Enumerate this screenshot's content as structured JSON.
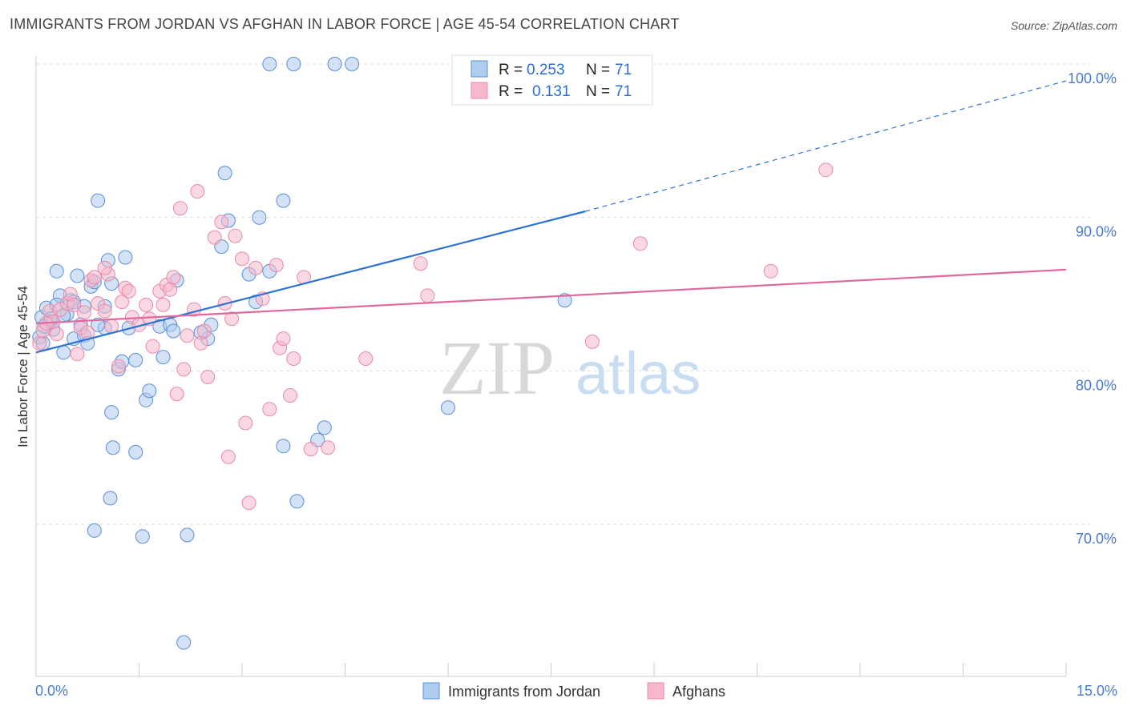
{
  "header": {
    "title": "IMMIGRANTS FROM JORDAN VS AFGHAN IN LABOR FORCE | AGE 45-54 CORRELATION CHART",
    "source": "Source: ZipAtlas.com"
  },
  "watermark": {
    "zip": "ZIP",
    "atlas": "atlas"
  },
  "colors": {
    "jordan_fill": "#aecbf0",
    "jordan_stroke": "#5b8fd6",
    "jordan_line": "#2e73d0",
    "afghan_fill": "#f5b8cc",
    "afghan_stroke": "#e98aa8",
    "afghan_line": "#e0689a",
    "grid": "#dddddd",
    "tick_text": "#4a7bc8"
  },
  "legend": {
    "rows": [
      {
        "r_label": "R =",
        "r_value": "0.253",
        "n_label": "N =",
        "n_value": "71"
      },
      {
        "r_label": "R =",
        "r_value": "0.131",
        "n_label": "N =",
        "n_value": "71"
      }
    ]
  },
  "chart_data": {
    "type": "scatter",
    "title": "IMMIGRANTS FROM JORDAN VS AFGHAN IN LABOR FORCE | AGE 45-54 CORRELATION CHART",
    "xlabel": "",
    "ylabel": "In Labor Force | Age 45-54",
    "xlim": [
      0,
      15
    ],
    "ylim": [
      60,
      101.5
    ],
    "x_tick_labels": [
      "0.0%",
      "15.0%"
    ],
    "y_ticks": [
      70,
      80,
      90,
      100
    ],
    "y_tick_labels": [
      "70.0%",
      "80.0%",
      "90.0%",
      "100.0%"
    ],
    "grid": true,
    "legend_position": "bottom",
    "series": [
      {
        "name": "Immigrants from Jordan",
        "r": 0.253,
        "n": 71,
        "trend": {
          "x0": 0,
          "y0": 81.2,
          "x1": 8.0,
          "y1": 90.4,
          "dash_to_x": 15,
          "dash_to_y": 98.9
        },
        "points": [
          [
            0.05,
            82.2
          ],
          [
            0.08,
            83.5
          ],
          [
            0.1,
            81.8
          ],
          [
            0.15,
            84.1
          ],
          [
            0.2,
            83.2
          ],
          [
            0.25,
            82.7
          ],
          [
            0.3,
            86.5
          ],
          [
            0.35,
            84.9
          ],
          [
            0.4,
            81.2
          ],
          [
            0.45,
            83.7
          ],
          [
            0.5,
            84.6
          ],
          [
            0.55,
            82.1
          ],
          [
            0.6,
            86.2
          ],
          [
            0.65,
            83.0
          ],
          [
            0.7,
            82.3
          ],
          [
            0.75,
            81.8
          ],
          [
            0.8,
            85.5
          ],
          [
            0.85,
            85.8
          ],
          [
            0.9,
            91.1
          ],
          [
            1.0,
            82.8
          ],
          [
            1.05,
            87.2
          ],
          [
            1.1,
            85.7
          ],
          [
            1.2,
            80.1
          ],
          [
            1.25,
            80.6
          ],
          [
            1.3,
            87.4
          ],
          [
            1.35,
            82.8
          ],
          [
            1.45,
            80.7
          ],
          [
            1.6,
            78.1
          ],
          [
            1.65,
            78.7
          ],
          [
            1.8,
            82.9
          ],
          [
            1.85,
            80.9
          ],
          [
            1.95,
            83.0
          ],
          [
            2.0,
            82.6
          ],
          [
            2.05,
            85.9
          ],
          [
            2.15,
            62.3
          ],
          [
            2.2,
            69.3
          ],
          [
            1.55,
            69.2
          ],
          [
            0.85,
            69.6
          ],
          [
            1.08,
            71.7
          ],
          [
            1.12,
            75.0
          ],
          [
            1.45,
            74.7
          ],
          [
            1.1,
            77.3
          ],
          [
            2.5,
            82.1
          ],
          [
            2.55,
            83.0
          ],
          [
            2.7,
            88.1
          ],
          [
            2.75,
            92.9
          ],
          [
            2.8,
            89.8
          ],
          [
            3.1,
            86.3
          ],
          [
            3.2,
            84.5
          ],
          [
            3.25,
            90.0
          ],
          [
            3.4,
            86.5
          ],
          [
            3.6,
            91.1
          ],
          [
            3.6,
            75.1
          ],
          [
            3.8,
            71.5
          ],
          [
            4.1,
            75.5
          ],
          [
            4.2,
            76.3
          ],
          [
            3.4,
            100.0
          ],
          [
            3.75,
            100.0
          ],
          [
            4.35,
            100.0
          ],
          [
            4.6,
            100.0
          ],
          [
            6.0,
            77.6
          ],
          [
            7.7,
            84.6
          ],
          [
            0.12,
            82.9
          ],
          [
            0.22,
            83.4
          ],
          [
            0.3,
            84.3
          ],
          [
            0.4,
            83.6
          ],
          [
            0.55,
            84.5
          ],
          [
            0.7,
            84.2
          ],
          [
            0.9,
            83.0
          ],
          [
            1.0,
            84.2
          ],
          [
            2.4,
            82.5
          ]
        ]
      },
      {
        "name": "Afghans",
        "r": 0.131,
        "n": 71,
        "trend": {
          "x0": 0,
          "y0": 83.1,
          "x1": 15,
          "y1": 86.6
        },
        "points": [
          [
            0.05,
            81.8
          ],
          [
            0.1,
            82.6
          ],
          [
            0.2,
            83.9
          ],
          [
            0.25,
            83.2
          ],
          [
            0.35,
            84.0
          ],
          [
            0.45,
            84.4
          ],
          [
            0.5,
            85.0
          ],
          [
            0.55,
            84.3
          ],
          [
            0.6,
            81.1
          ],
          [
            0.65,
            82.8
          ],
          [
            0.7,
            83.8
          ],
          [
            0.75,
            82.5
          ],
          [
            0.8,
            85.9
          ],
          [
            0.85,
            86.1
          ],
          [
            0.9,
            84.4
          ],
          [
            1.0,
            83.9
          ],
          [
            1.05,
            86.3
          ],
          [
            1.1,
            82.9
          ],
          [
            1.2,
            80.3
          ],
          [
            1.25,
            84.5
          ],
          [
            1.3,
            85.4
          ],
          [
            1.35,
            85.2
          ],
          [
            1.4,
            83.5
          ],
          [
            1.5,
            83.0
          ],
          [
            1.6,
            84.3
          ],
          [
            1.65,
            83.4
          ],
          [
            1.7,
            81.6
          ],
          [
            1.8,
            85.2
          ],
          [
            1.85,
            84.3
          ],
          [
            1.9,
            85.6
          ],
          [
            1.95,
            85.3
          ],
          [
            2.0,
            86.1
          ],
          [
            2.05,
            78.5
          ],
          [
            2.1,
            90.6
          ],
          [
            2.15,
            80.1
          ],
          [
            2.2,
            82.3
          ],
          [
            2.3,
            84.0
          ],
          [
            2.35,
            91.7
          ],
          [
            2.4,
            81.8
          ],
          [
            2.45,
            82.6
          ],
          [
            2.5,
            79.6
          ],
          [
            2.6,
            88.7
          ],
          [
            2.7,
            89.7
          ],
          [
            2.75,
            84.4
          ],
          [
            2.8,
            74.4
          ],
          [
            2.85,
            83.4
          ],
          [
            2.9,
            88.8
          ],
          [
            3.0,
            87.3
          ],
          [
            3.05,
            76.6
          ],
          [
            3.1,
            71.4
          ],
          [
            3.2,
            86.7
          ],
          [
            3.3,
            84.7
          ],
          [
            3.4,
            77.5
          ],
          [
            3.5,
            86.9
          ],
          [
            3.55,
            81.5
          ],
          [
            3.6,
            82.1
          ],
          [
            3.7,
            78.4
          ],
          [
            3.75,
            80.8
          ],
          [
            3.9,
            86.1
          ],
          [
            4.0,
            74.9
          ],
          [
            4.25,
            75.0
          ],
          [
            4.8,
            80.8
          ],
          [
            5.6,
            87.0
          ],
          [
            5.7,
            84.9
          ],
          [
            8.1,
            81.9
          ],
          [
            8.8,
            88.3
          ],
          [
            10.7,
            86.5
          ],
          [
            11.5,
            93.1
          ],
          [
            0.15,
            83.1
          ],
          [
            0.3,
            82.4
          ],
          [
            1.0,
            86.7
          ]
        ]
      }
    ]
  }
}
